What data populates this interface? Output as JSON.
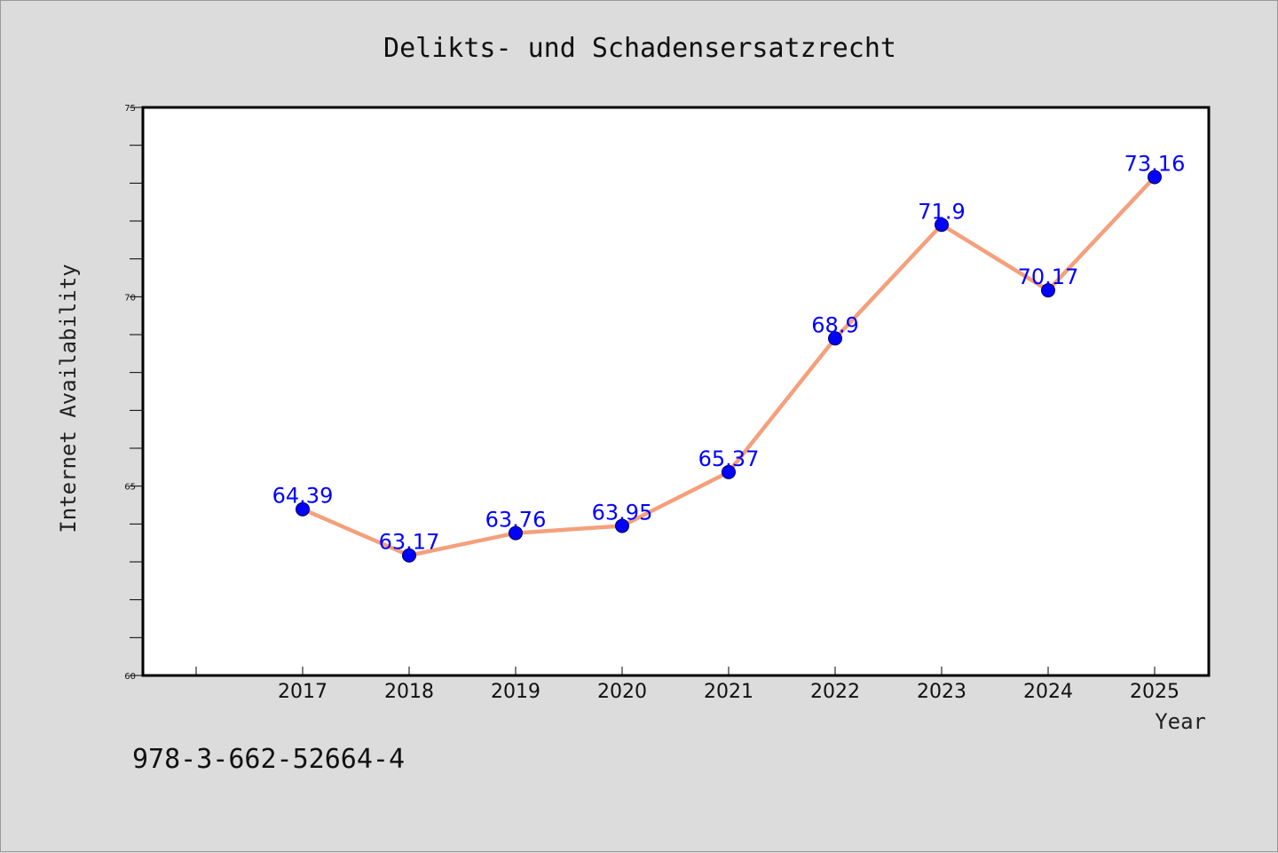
{
  "chart_data": {
    "type": "line",
    "title": "Delikts- und Schadensersatzrecht",
    "xlabel": "Year",
    "ylabel": "Internet Availability",
    "categories": [
      "2017",
      "2018",
      "2019",
      "2020",
      "2021",
      "2022",
      "2023",
      "2024",
      "2025"
    ],
    "series": [
      {
        "values": [
          64.39,
          63.17,
          63.76,
          63.95,
          65.37,
          68.9,
          71.9,
          70.17,
          73.16
        ],
        "labels": [
          "64.39",
          "63.17",
          "63.76",
          "63.95",
          "65.37",
          "68.9",
          "71.9",
          "70.17",
          "73.16"
        ]
      }
    ],
    "ylim": [
      60,
      75
    ],
    "yticks": [
      "60",
      "65",
      "70",
      "75"
    ],
    "grid": false,
    "legend": "none",
    "colors": {
      "line": "#f4a07c",
      "marker": "#0000ff",
      "data_label": "#0000ff",
      "background": "#dcdcdc",
      "plot_area": "#ffffff"
    }
  },
  "footnote": "978-3-662-52664-4"
}
